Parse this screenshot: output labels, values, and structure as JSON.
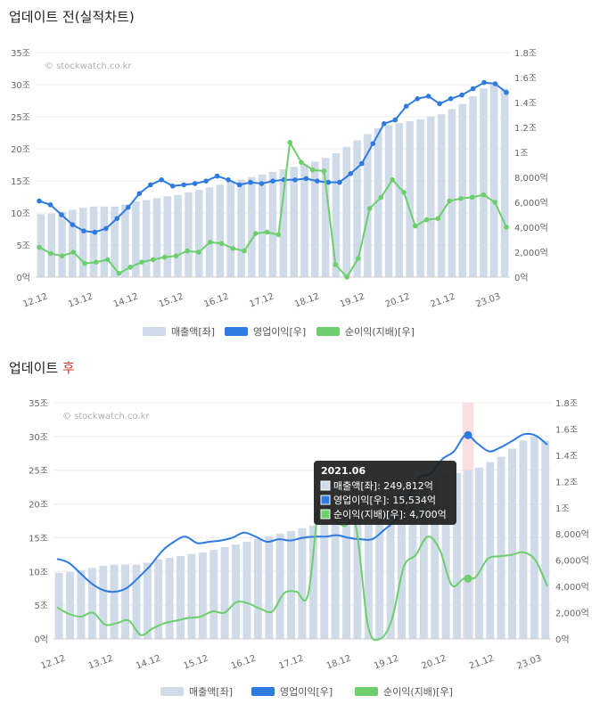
{
  "headings": {
    "before": "업데이트 전(실적차트)",
    "after_prefix": "업데이트 ",
    "after_accent": "후"
  },
  "watermark": "© stockwatch.co.kr",
  "colors": {
    "revenue": "#cfdbe8",
    "operating": "#2e7be0",
    "net": "#6ccf6c",
    "tooltip_bg": "#1f1f1f",
    "highlight": "#f8d4d6"
  },
  "chart_data": [
    {
      "type": "bar",
      "line_style": "markers",
      "x_tick_labels": [
        "12.12",
        "13.12",
        "14.12",
        "15.12",
        "16.12",
        "17.12",
        "18.12",
        "19.12",
        "20.12",
        "21.12",
        "23.03"
      ],
      "left_axis": {
        "ticks": [
          "0억",
          "5조",
          "10조",
          "15조",
          "20조",
          "25조",
          "30조",
          "35조"
        ],
        "ylim": [
          0,
          35
        ]
      },
      "right_axis": {
        "ticks": [
          "0억",
          "2,000억",
          "4,000억",
          "6,000억",
          "8,000억",
          "1조",
          "1.2조",
          "1.4조",
          "1.6조",
          "1.8조"
        ],
        "ylim": [
          0,
          18000
        ]
      },
      "series": [
        {
          "name": "매출액[좌]",
          "axis": "left",
          "unit": "조",
          "values": [
            9.8,
            9.9,
            10.2,
            10.5,
            10.8,
            11.0,
            11.0,
            11.0,
            11.3,
            11.8,
            12.0,
            12.3,
            12.6,
            12.8,
            13.2,
            13.6,
            14.0,
            14.4,
            14.8,
            15.2,
            15.6,
            16.0,
            16.4,
            16.8,
            17.2,
            17.6,
            18.0,
            18.6,
            19.3,
            20.3,
            21.3,
            22.3,
            23.2,
            23.7,
            24.0,
            24.3,
            24.6,
            25.0,
            25.4,
            26.2,
            27.0,
            28.2,
            29.4,
            30.0,
            29.4
          ]
        },
        {
          "name": "영업이익[우]",
          "axis": "right",
          "unit": "억",
          "values": [
            6100,
            5800,
            5000,
            4200,
            3700,
            3600,
            3900,
            4700,
            5600,
            6700,
            7400,
            7800,
            7300,
            7400,
            7500,
            7700,
            8100,
            7800,
            7400,
            7600,
            7500,
            7700,
            7800,
            7800,
            7900,
            7700,
            7600,
            7600,
            8300,
            9100,
            10700,
            12300,
            12600,
            13700,
            14300,
            14500,
            13900,
            14300,
            14600,
            15100,
            15600,
            15500,
            14800
          ]
        },
        {
          "name": "순이익(지배)[우]",
          "axis": "right",
          "unit": "억",
          "values": [
            2400,
            1900,
            1700,
            2000,
            1100,
            1200,
            1400,
            300,
            800,
            1200,
            1400,
            1600,
            1700,
            2100,
            2000,
            2800,
            2700,
            2300,
            2100,
            3500,
            3600,
            3400,
            10800,
            9200,
            8600,
            8500,
            1000,
            0,
            1500,
            5500,
            6400,
            7800,
            6800,
            4100,
            4600,
            4700,
            6100,
            6300,
            6400,
            6600,
            6000,
            4000
          ]
        }
      ]
    },
    {
      "type": "bar",
      "line_style": "smooth",
      "x_tick_labels": [
        "12.12",
        "13.12",
        "14.12",
        "15.12",
        "16.12",
        "17.12",
        "18.12",
        "19.12",
        "20.12",
        "21.12",
        "23.03"
      ],
      "left_axis": {
        "ticks": [
          "0억",
          "5조",
          "10조",
          "15조",
          "20조",
          "25조",
          "30조",
          "35조"
        ],
        "ylim": [
          0,
          35
        ]
      },
      "right_axis": {
        "ticks": [
          "0억",
          "2,000억",
          "4,000억",
          "6,000억",
          "8,000억",
          "1조",
          "1.2조",
          "1.4조",
          "1.6조",
          "1.8조"
        ],
        "ylim": [
          0,
          18000
        ]
      },
      "series": [
        {
          "name": "매출액[좌]",
          "axis": "left",
          "unit": "조",
          "values": [
            9.8,
            9.9,
            10.2,
            10.5,
            10.8,
            11.0,
            11.0,
            11.0,
            11.3,
            11.8,
            12.0,
            12.3,
            12.6,
            12.8,
            13.2,
            13.6,
            14.0,
            14.4,
            14.8,
            15.2,
            15.6,
            16.0,
            16.4,
            16.8,
            17.2,
            17.6,
            18.0,
            18.6,
            19.3,
            20.3,
            21.3,
            22.3,
            23.2,
            23.7,
            24.0,
            24.3,
            24.6,
            25.0,
            25.4,
            26.2,
            27.0,
            28.2,
            29.4,
            30.0,
            29.4
          ]
        },
        {
          "name": "영업이익[우]",
          "axis": "right",
          "unit": "억",
          "values": [
            6100,
            5800,
            5000,
            4200,
            3700,
            3600,
            3900,
            4700,
            5600,
            6700,
            7400,
            7800,
            7300,
            7400,
            7500,
            7700,
            8100,
            7800,
            7400,
            7600,
            7500,
            7700,
            7800,
            7800,
            7900,
            7700,
            7600,
            7600,
            8300,
            9100,
            10700,
            12300,
            12600,
            13700,
            14300,
            15534,
            14900,
            14300,
            14600,
            15100,
            15600,
            15500,
            14800
          ]
        },
        {
          "name": "순이익(지배)[우]",
          "axis": "right",
          "unit": "억",
          "values": [
            2400,
            1900,
            1700,
            2000,
            1100,
            1200,
            1400,
            300,
            800,
            1200,
            1400,
            1600,
            1700,
            2100,
            2000,
            2800,
            2700,
            2300,
            2100,
            3500,
            3600,
            3400,
            10800,
            9200,
            8600,
            8500,
            1000,
            0,
            1500,
            5500,
            6400,
            7800,
            6800,
            4100,
            4600,
            4700,
            6100,
            6300,
            6400,
            6600,
            6000,
            4000
          ]
        }
      ],
      "tooltip": {
        "title": "2021.06",
        "rows": [
          "매출액[좌]: 249,812억",
          "영업이익[우]: 15,534억",
          "순이익(지배)[우]: 4,700억"
        ],
        "revenue": 249812,
        "operating": 15534,
        "net": 4700
      }
    }
  ]
}
